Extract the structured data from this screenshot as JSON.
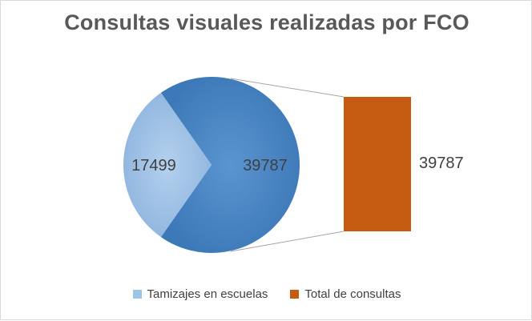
{
  "chart_data": {
    "type": "bar-of-pie",
    "title": "Consultas visuales realizadas por FCO",
    "pie": {
      "slices": [
        {
          "label": "Tamizajes en escuelas",
          "value": 17499,
          "color": "#9dc3e6"
        },
        {
          "label": "Total de consultas",
          "value": 39787,
          "color": "#4a86c5"
        }
      ]
    },
    "bar": {
      "value": 39787,
      "color": "#c55a11"
    },
    "legend": {
      "placement": "bottom",
      "items": [
        {
          "label": "Tamizajes en escuelas",
          "color": "#9dc3e6"
        },
        {
          "label": "Total de consultas",
          "color": "#c55a11"
        }
      ]
    }
  }
}
